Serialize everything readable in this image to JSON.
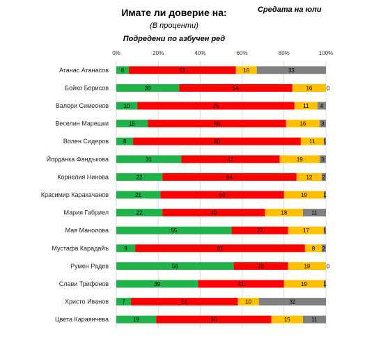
{
  "header": {
    "title": "Имате ли доверие на:",
    "subtitle": "(В проценти)",
    "subtitle2": "Подредени по азбучен ред",
    "note": "Средата на юли"
  },
  "chart_data": {
    "type": "bar",
    "orientation": "horizontal",
    "stacked": true,
    "xlim": [
      0,
      100
    ],
    "xticks": [
      "0%",
      "20%",
      "40%",
      "60%",
      "80%",
      "100%"
    ],
    "grid": true,
    "legend": "none",
    "categories": [
      "Атанас Атанасов",
      "Бойко Борисов",
      "Валери Симеонов",
      "Веселин Марешки",
      "Волен Сидеров",
      "Йорданка Фандъкова",
      "Корнелия Нинова",
      "Красимир Каракачанов",
      "Мария Габриел",
      "Мая Манолова",
      "Мустафа Карадайъ",
      "Румен Радев",
      "Слави Трифонов",
      "Христо Иванов",
      "Цвета Караянчева"
    ],
    "series": [
      {
        "color": "#21b24b",
        "values": [
          6,
          30,
          10,
          15,
          8,
          31,
          22,
          21,
          22,
          55,
          9,
          56,
          39,
          7,
          19
        ]
      },
      {
        "color": "#ff0000",
        "values": [
          51,
          54,
          75,
          66,
          80,
          47,
          64,
          59,
          49,
          27,
          81,
          26,
          41,
          51,
          55
        ]
      },
      {
        "color": "#ffc000",
        "values": [
          10,
          16,
          11,
          16,
          11,
          19,
          12,
          19,
          18,
          17,
          8,
          18,
          19,
          10,
          15
        ]
      },
      {
        "color": "#808080",
        "values": [
          33,
          0,
          4,
          3,
          1,
          3,
          2,
          1,
          11,
          1,
          2,
          0,
          1,
          32,
          11
        ]
      }
    ]
  }
}
